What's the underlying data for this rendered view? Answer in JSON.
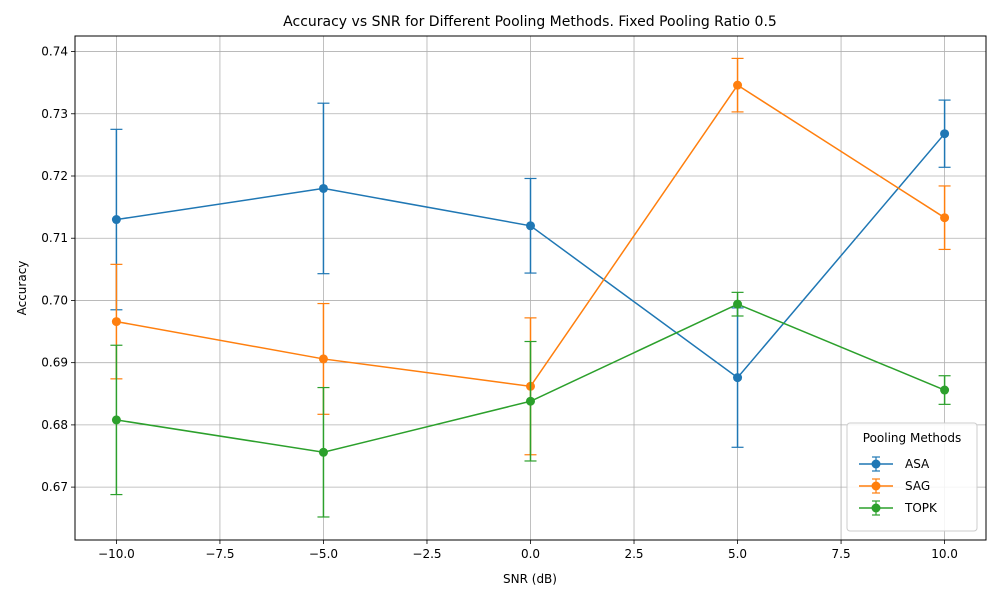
{
  "chart_data": {
    "type": "line",
    "title": "Accuracy vs SNR for Different Pooling Methods. Fixed Pooling Ratio 0.5",
    "xlabel": "SNR (dB)",
    "ylabel": "Accuracy",
    "x": [
      -10,
      -5,
      0,
      5,
      10
    ],
    "xlim": [
      -11,
      11
    ],
    "ylim": [
      0.6615,
      0.7425
    ],
    "x_ticks": [
      -10.0,
      -7.5,
      -5.0,
      -2.5,
      0.0,
      2.5,
      5.0,
      7.5,
      10.0
    ],
    "x_tick_labels": [
      "−10.0",
      "−7.5",
      "−5.0",
      "−2.5",
      "0.0",
      "2.5",
      "5.0",
      "7.5",
      "10.0"
    ],
    "y_ticks": [
      0.67,
      0.68,
      0.69,
      0.7,
      0.71,
      0.72,
      0.73,
      0.74
    ],
    "y_tick_labels": [
      "0.67",
      "0.68",
      "0.69",
      "0.70",
      "0.71",
      "0.72",
      "0.73",
      "0.74"
    ],
    "grid": true,
    "legend": {
      "title": "Pooling Methods",
      "position": "lower-right"
    },
    "series": [
      {
        "name": "ASA",
        "color": "#1f77b4",
        "values": [
          0.713,
          0.718,
          0.712,
          0.6876,
          0.7268
        ],
        "errors": [
          0.0145,
          0.0137,
          0.0076,
          0.0112,
          0.0054
        ]
      },
      {
        "name": "SAG",
        "color": "#ff7f0e",
        "values": [
          0.6966,
          0.6906,
          0.6862,
          0.7346,
          0.7133
        ],
        "errors": [
          0.0092,
          0.0089,
          0.011,
          0.0043,
          0.0051
        ]
      },
      {
        "name": "TOPK",
        "color": "#2ca02c",
        "values": [
          0.6808,
          0.6756,
          0.6838,
          0.6994,
          0.6856
        ],
        "errors": [
          0.012,
          0.0104,
          0.0096,
          0.0019,
          0.0023
        ]
      }
    ]
  }
}
